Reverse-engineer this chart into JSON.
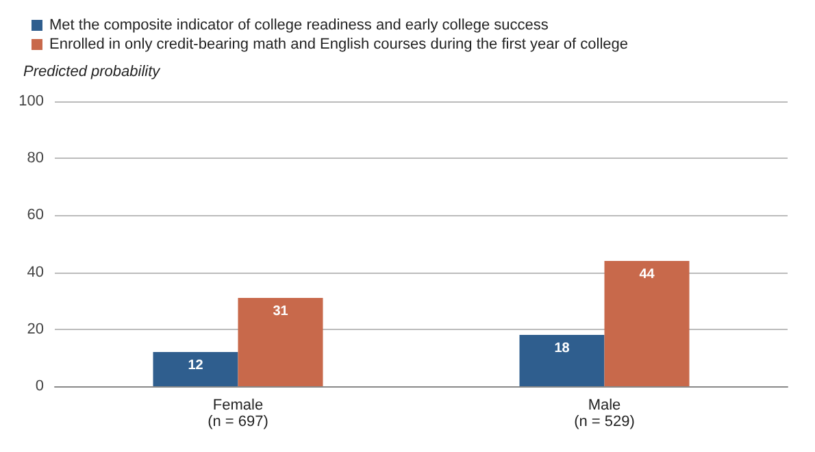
{
  "chart_data": {
    "type": "bar",
    "ylabel": "Predicted probability",
    "categories": [
      "Female\n(n = 697)",
      "Male\n(n = 529)"
    ],
    "series": [
      {
        "name": "Met the composite indicator of college readiness and early college success",
        "color": "#2f5e8e",
        "values": [
          12,
          18
        ]
      },
      {
        "name": "Enrolled in only credit-bearing math and English courses during the first year of college",
        "color": "#c8694b",
        "values": [
          31,
          44
        ]
      }
    ],
    "ylim": [
      0,
      100
    ],
    "yticks": [
      0,
      20,
      40,
      60,
      80,
      100
    ],
    "grid": "y",
    "legend": "top left",
    "data_labels": true
  }
}
